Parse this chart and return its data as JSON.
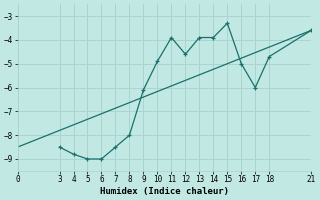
{
  "xlabel": "Humidex (Indice chaleur)",
  "background_color": "#c2e8e4",
  "grid_color": "#aad4d0",
  "line_color": "#1a706b",
  "xlim": [
    0,
    21
  ],
  "ylim": [
    -9.5,
    -2.5
  ],
  "xticks": [
    0,
    3,
    4,
    5,
    6,
    7,
    8,
    9,
    10,
    11,
    12,
    13,
    14,
    15,
    16,
    17,
    18,
    21
  ],
  "yticks": [
    -9,
    -8,
    -7,
    -6,
    -5,
    -4,
    -3
  ],
  "line1_x": [
    3,
    4,
    5,
    6,
    7,
    8,
    9,
    10,
    11,
    12,
    13,
    14,
    15,
    16,
    17,
    18,
    21
  ],
  "line1_y": [
    -8.5,
    -8.8,
    -9.0,
    -9.0,
    -8.5,
    -8.0,
    -6.1,
    -4.9,
    -3.9,
    -4.6,
    -3.9,
    -3.9,
    -3.3,
    -5.0,
    -6.0,
    -4.7,
    -3.6
  ],
  "line2_x": [
    0,
    21
  ],
  "line2_y": [
    -8.5,
    -3.6
  ]
}
